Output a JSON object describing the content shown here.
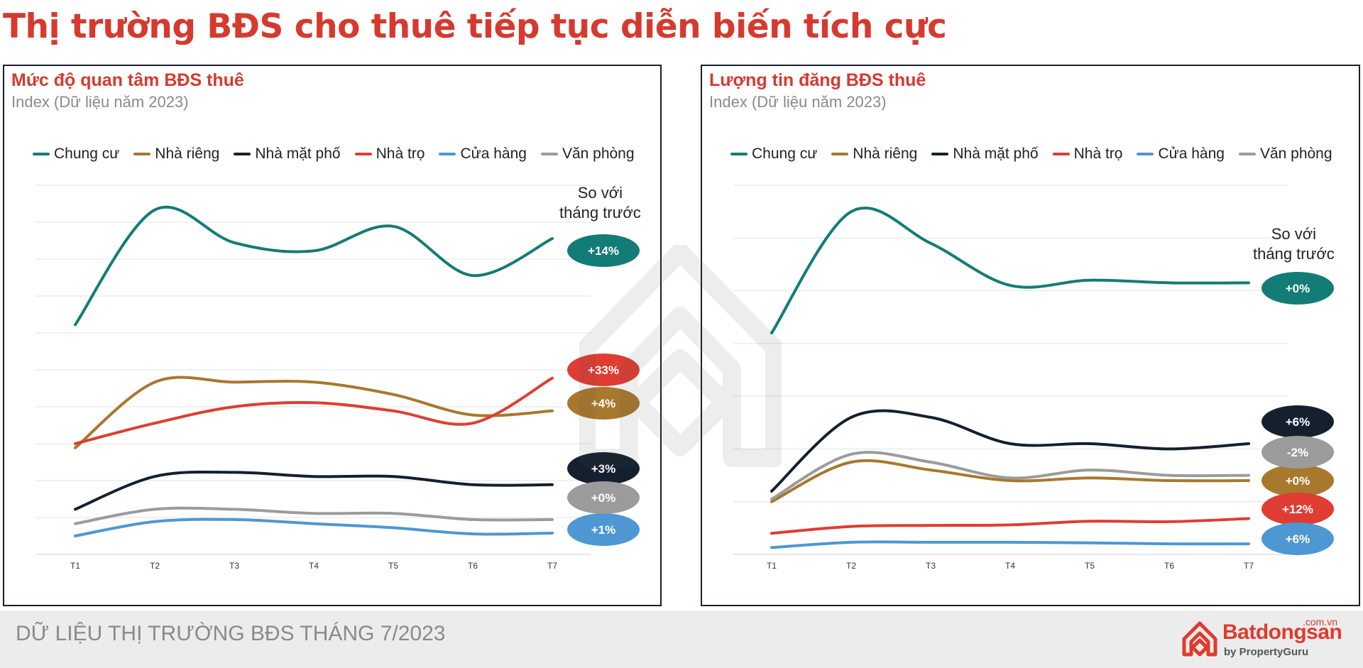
{
  "page_title": "Thị trường BĐS cho thuê tiếp tục diễn biến tích cực",
  "footer": {
    "text": "DỮ LIỆU THỊ TRƯỜNG BĐS THÁNG 7/2023"
  },
  "brand": {
    "name": "Batdongsan",
    "suffix": ".com.vn",
    "by": "by PropertyGuru",
    "logo_icon": "batdongsan-logo-icon",
    "color": "#e03a2e"
  },
  "compare_label_line1": "So với",
  "compare_label_line2": "tháng trước",
  "colors": {
    "title": "#d63a2f",
    "Chung cư": "#137c77",
    "Nhà riêng": "#a8782d",
    "Nhà mặt phố": "#14202e",
    "Nhà trọ": "#df3d33",
    "Cửa hàng": "#4e97d3",
    "Văn phòng": "#9b9b9b"
  },
  "chart_data": [
    {
      "type": "line",
      "title": "Mức độ quan tâm BĐS thuê",
      "subtitle": "Index (Dữ liệu năm 2023)",
      "categories": [
        "T1",
        "T2",
        "T3",
        "T4",
        "T5",
        "T6",
        "T7"
      ],
      "ylim": [
        0,
        9
      ],
      "grid": true,
      "legend": "top",
      "series": [
        {
          "name": "Chung cư",
          "values": [
            5.6,
            8.4,
            7.6,
            7.4,
            8.0,
            6.8,
            7.7
          ],
          "change": "+14%"
        },
        {
          "name": "Nhà riêng",
          "values": [
            2.6,
            4.2,
            4.2,
            4.2,
            3.9,
            3.4,
            3.5
          ],
          "change": "+4%"
        },
        {
          "name": "Nhà mặt phố",
          "values": [
            1.1,
            1.9,
            2.0,
            1.9,
            1.9,
            1.7,
            1.7
          ],
          "change": "+3%"
        },
        {
          "name": "Nhà trọ",
          "values": [
            2.7,
            3.2,
            3.6,
            3.7,
            3.5,
            3.2,
            4.3
          ],
          "change": "+33%"
        },
        {
          "name": "Cửa hàng",
          "values": [
            0.45,
            0.8,
            0.85,
            0.75,
            0.65,
            0.5,
            0.52
          ],
          "change": "+1%"
        },
        {
          "name": "Văn phòng",
          "values": [
            0.75,
            1.1,
            1.1,
            1.0,
            1.0,
            0.85,
            0.85
          ],
          "change": "+0%"
        }
      ]
    },
    {
      "type": "line",
      "title": "Lượng tin đăng BĐS thuê",
      "subtitle": "Index (Dữ liệu năm 2023)",
      "categories": [
        "T1",
        "T2",
        "T3",
        "T4",
        "T5",
        "T6",
        "T7"
      ],
      "ylim": [
        0,
        7
      ],
      "grid": true,
      "legend": "top",
      "series": [
        {
          "name": "Chung cư",
          "values": [
            4.2,
            6.5,
            5.9,
            5.1,
            5.2,
            5.15,
            5.15
          ],
          "change": "+0%"
        },
        {
          "name": "Nhà riêng",
          "values": [
            1.0,
            1.75,
            1.6,
            1.4,
            1.45,
            1.4,
            1.4
          ],
          "change": "+0%"
        },
        {
          "name": "Nhà mặt phố",
          "values": [
            1.2,
            2.6,
            2.6,
            2.1,
            2.1,
            2.0,
            2.1
          ],
          "change": "+6%"
        },
        {
          "name": "Nhà trọ",
          "values": [
            0.4,
            0.53,
            0.55,
            0.56,
            0.63,
            0.62,
            0.68
          ],
          "change": "+12%"
        },
        {
          "name": "Cửa hàng",
          "values": [
            0.13,
            0.23,
            0.23,
            0.23,
            0.22,
            0.2,
            0.2
          ],
          "change": "+6%"
        },
        {
          "name": "Văn phòng",
          "values": [
            1.05,
            1.9,
            1.75,
            1.45,
            1.6,
            1.5,
            1.5
          ],
          "change": "-2%"
        }
      ]
    }
  ]
}
